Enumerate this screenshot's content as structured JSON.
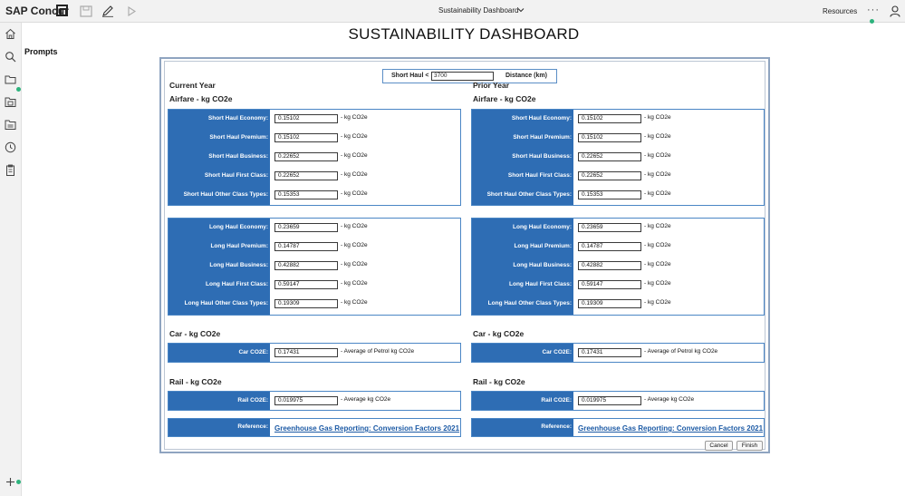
{
  "topbar": {
    "brand": "SAP Concur",
    "title": "Sustainability Dashboard",
    "resources": "Resources",
    "more": "···"
  },
  "colors": {
    "panel_blue": "#2e6db4",
    "panel_border": "#4a86c5",
    "link": "#1c5aa5",
    "status_green": "#2db37d"
  },
  "sidebar": {
    "prompts": "Prompts",
    "icons": [
      "home-icon",
      "search-icon",
      "folder-icon",
      "document-icon",
      "folder-alt-icon",
      "clock-icon",
      "clipboard-icon",
      "add-icon"
    ]
  },
  "page": {
    "title": "SUSTAINABILITY DASHBOARD"
  },
  "haul": {
    "label": "Short Haul <",
    "value": "3700",
    "unit": "Distance (km)"
  },
  "current": {
    "heading": "Current Year",
    "airfare_heading": "Airfare -  kg CO2e",
    "short_haul": [
      {
        "label": "Short Haul Economy:",
        "value": "0.15102",
        "unit": "- kg CO2e"
      },
      {
        "label": "Short Haul Premium:",
        "value": "0.15102",
        "unit": "- kg CO2e"
      },
      {
        "label": "Short Haul Business:",
        "value": "0.22652",
        "unit": "- kg CO2e"
      },
      {
        "label": "Short Haul First Class:",
        "value": "0.22652",
        "unit": "- kg CO2e"
      },
      {
        "label": "Short Haul Other Class Types:",
        "value": "0.15353",
        "unit": "- kg CO2e"
      }
    ],
    "long_haul": [
      {
        "label": "Long Haul Economy:",
        "value": "0.23659",
        "unit": "- kg CO2e"
      },
      {
        "label": "Long Haul Premium:",
        "value": "0.14787",
        "unit": "- kg CO2e"
      },
      {
        "label": "Long Haul Business:",
        "value": "0.42882",
        "unit": "- kg CO2e"
      },
      {
        "label": "Long Haul First Class:",
        "value": "0.59147",
        "unit": "- kg CO2e"
      },
      {
        "label": "Long Haul Other Class Types:",
        "value": "0.19309",
        "unit": "- kg CO2e"
      }
    ],
    "car_heading": "Car -  kg CO2e",
    "car": {
      "label": "Car CO2E:",
      "value": "0.17431",
      "unit": "- Average of Petrol kg CO2e"
    },
    "rail_heading": "Rail -  kg CO2e",
    "rail": {
      "label": "Rail CO2E:",
      "value": "0.019975",
      "unit": "- Average kg CO2e"
    },
    "reference": {
      "label": "Reference:",
      "link": "Greenhouse Gas Reporting: Conversion Factors 2021"
    }
  },
  "prior": {
    "heading": "Prior Year",
    "airfare_heading": "Airfare -  kg CO2e",
    "short_haul": [
      {
        "label": "Short Haul Economy:",
        "value": "0.15102",
        "unit": "- kg CO2e"
      },
      {
        "label": "Short Haul Premium:",
        "value": "0.15102",
        "unit": "- kg CO2e"
      },
      {
        "label": "Short Haul Business:",
        "value": "0.22652",
        "unit": "- kg CO2e"
      },
      {
        "label": "Short Haul First Class:",
        "value": "0.22652",
        "unit": "- kg CO2e"
      },
      {
        "label": "Short Haul Other Class Types:",
        "value": "0.15353",
        "unit": "- kg CO2e"
      }
    ],
    "long_haul": [
      {
        "label": "Long Haul Economy:",
        "value": "0.23659",
        "unit": "- kg CO2e"
      },
      {
        "label": "Long Haul Premium:",
        "value": "0.14787",
        "unit": "- kg CO2e"
      },
      {
        "label": "Long Haul Business:",
        "value": "0.42882",
        "unit": "- kg CO2e"
      },
      {
        "label": "Long Haul First Class:",
        "value": "0.59147",
        "unit": "- kg CO2e"
      },
      {
        "label": "Long Haul Other Class Types:",
        "value": "0.19309",
        "unit": "- kg CO2e"
      }
    ],
    "car_heading": "Car -  kg CO2e",
    "car": {
      "label": "Car CO2E:",
      "value": "0.17431",
      "unit": "- Average of Petrol kg CO2e"
    },
    "rail_heading": "Rail -  kg CO2e",
    "rail": {
      "label": "Rail CO2E:",
      "value": "0.019975",
      "unit": "- Average kg CO2e"
    },
    "reference": {
      "label": "Reference:",
      "link": "Greenhouse Gas Reporting: Conversion Factors 2021"
    }
  },
  "buttons": {
    "cancel": "Cancel",
    "finish": "Finish"
  }
}
